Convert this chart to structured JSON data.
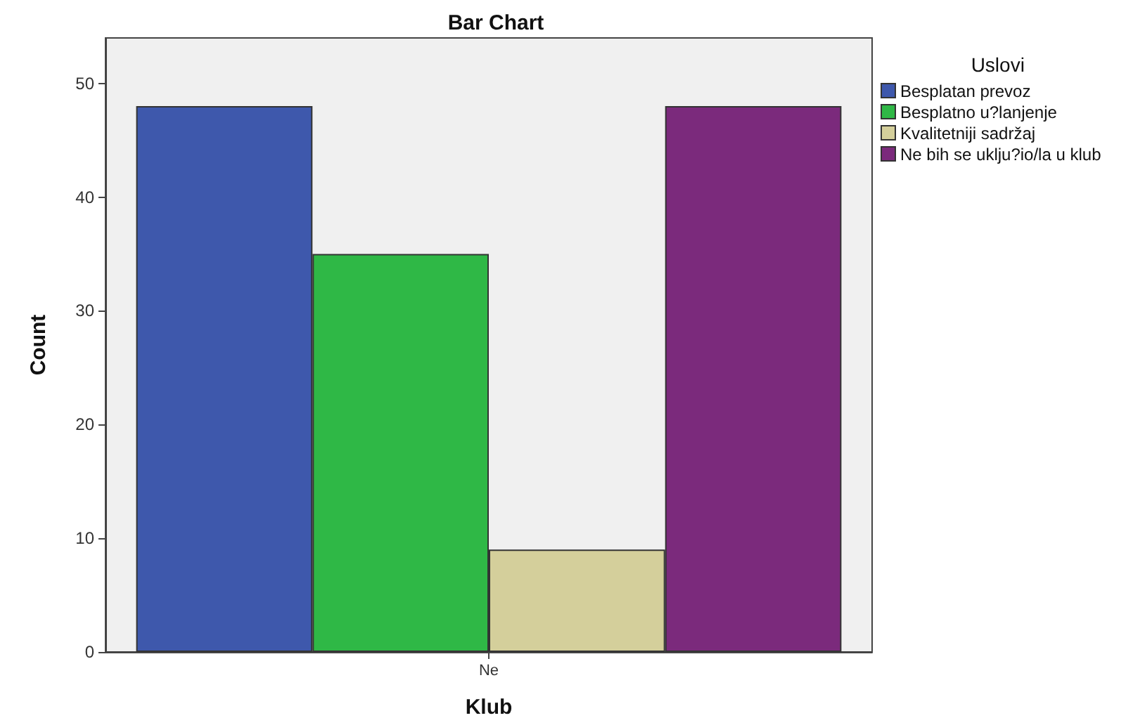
{
  "chart_data": {
    "type": "bar",
    "title": "Bar Chart",
    "xlabel": "Klub",
    "ylabel": "Count",
    "legend_title": "Uslovi",
    "categories": [
      "Ne"
    ],
    "series": [
      {
        "name": "Besplatan prevoz",
        "color": "#3e58ac",
        "values": [
          48
        ]
      },
      {
        "name": "Besplatno u?lanjenje",
        "color": "#2fb846",
        "values": [
          35
        ]
      },
      {
        "name": "Kvalitetniji sadržaj",
        "color": "#d4cf9b",
        "values": [
          9
        ]
      },
      {
        "name": "Ne bih se uklju?io/la u klub",
        "color": "#7b2a7c",
        "values": [
          48
        ]
      }
    ],
    "ylim": [
      0,
      54
    ],
    "yticks": [
      0,
      10,
      20,
      30,
      40,
      50
    ],
    "grid": false,
    "legend": "top right"
  }
}
